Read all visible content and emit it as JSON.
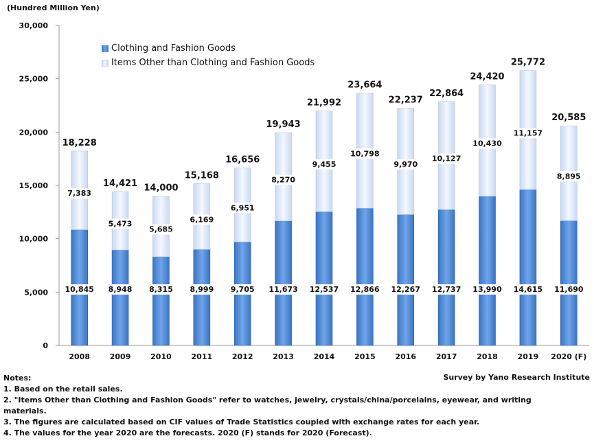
{
  "unit_label": "(Hundred Million Yen)",
  "legend": [
    {
      "label": "Clothing and Fashion Goods",
      "color": "#4a86d4"
    },
    {
      "label": "Items Other than Clothing and Fashion Goods",
      "color": "#dde7f7"
    }
  ],
  "source": "Survey by Yano Research Institute",
  "notes": {
    "heading": "Notes:",
    "lines": [
      "1. Based on the retail sales.",
      "2. \"Items Other than Clothing and Fashion Goods\" refer to watches, jewelry, crystals/china/porcelains, eyewear, and writing materials.",
      "3. The figures are calculated based on CIF values of Trade Statistics coupled with exchange rates for each year.",
      "4. The values for the year 2020 are the forecasts. 2020 (F) stands for 2020 (Forecast)."
    ]
  },
  "chart_data": {
    "type": "bar",
    "stacked": true,
    "categories": [
      "2008",
      "2009",
      "2010",
      "2011",
      "2012",
      "2013",
      "2014",
      "2015",
      "2016",
      "2017",
      "2018",
      "2019",
      "2020 (F)"
    ],
    "series": [
      {
        "name": "Clothing and Fashion Goods",
        "values": [
          10845,
          8948,
          8315,
          8999,
          9705,
          11673,
          12537,
          12866,
          12267,
          12737,
          13990,
          14615,
          11690
        ]
      },
      {
        "name": "Items Other than Clothing and Fashion Goods",
        "values": [
          7383,
          5473,
          5685,
          6169,
          6951,
          8270,
          9455,
          10798,
          9970,
          10127,
          10430,
          11157,
          8895
        ]
      }
    ],
    "totals": [
      18228,
      14421,
      14000,
      15168,
      16656,
      19943,
      21992,
      23664,
      22237,
      22864,
      24420,
      25772,
      20585
    ],
    "ylim": [
      0,
      30000
    ],
    "yticks": [
      0,
      5000,
      10000,
      15000,
      20000,
      25000,
      30000
    ],
    "ytick_labels": [
      "0",
      "5,000",
      "10,000",
      "15,000",
      "20,000",
      "25,000",
      "30,000"
    ],
    "grid": false,
    "legend_position": "top-left"
  }
}
